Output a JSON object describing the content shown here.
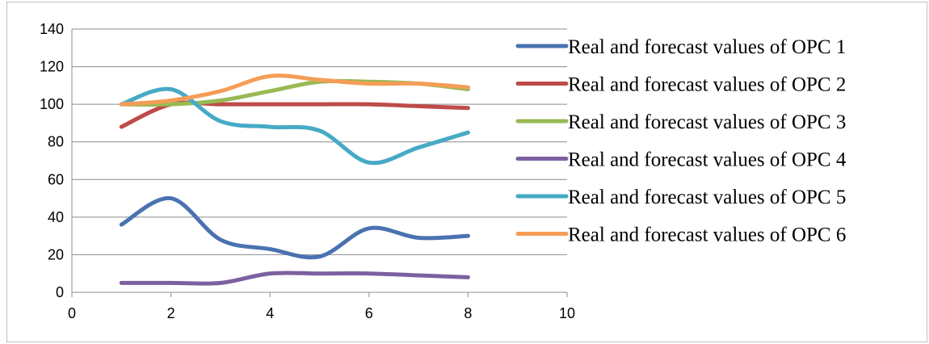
{
  "chart_data": {
    "type": "line",
    "smooth": true,
    "title": "",
    "xlabel": "",
    "ylabel": "",
    "xlim": [
      0,
      10
    ],
    "ylim": [
      0,
      140
    ],
    "xticks": [
      0,
      2,
      4,
      6,
      8,
      10
    ],
    "yticks": [
      0,
      20,
      40,
      60,
      80,
      100,
      120,
      140
    ],
    "grid": "horizontal",
    "legend_position": "right",
    "x": [
      1,
      2,
      3,
      4,
      5,
      6,
      7,
      8
    ],
    "series": [
      {
        "name": "Real and forecast values of OPC 1",
        "color": "#4a72b0",
        "values": [
          36,
          50,
          28,
          23,
          19,
          34,
          29,
          30
        ]
      },
      {
        "name": "Real and forecast values of OPC 2",
        "color": "#be4b48",
        "values": [
          88,
          100,
          100,
          100,
          100,
          100,
          99,
          98
        ]
      },
      {
        "name": "Real and forecast values of OPC 3",
        "color": "#98b954",
        "values": [
          100,
          100,
          102,
          107,
          112,
          112,
          111,
          108
        ]
      },
      {
        "name": "Real and forecast values of OPC 4",
        "color": "#7d60a0",
        "values": [
          5,
          5,
          5,
          10,
          10,
          10,
          9,
          8
        ]
      },
      {
        "name": "Real and forecast values of OPC 5",
        "color": "#46aac5",
        "values": [
          100,
          108,
          91,
          88,
          86,
          69,
          77,
          85
        ]
      },
      {
        "name": "Real and forecast values of OPC 6",
        "color": "#f59d56",
        "values": [
          100,
          102,
          107,
          115,
          113,
          111,
          111,
          109
        ]
      }
    ]
  }
}
